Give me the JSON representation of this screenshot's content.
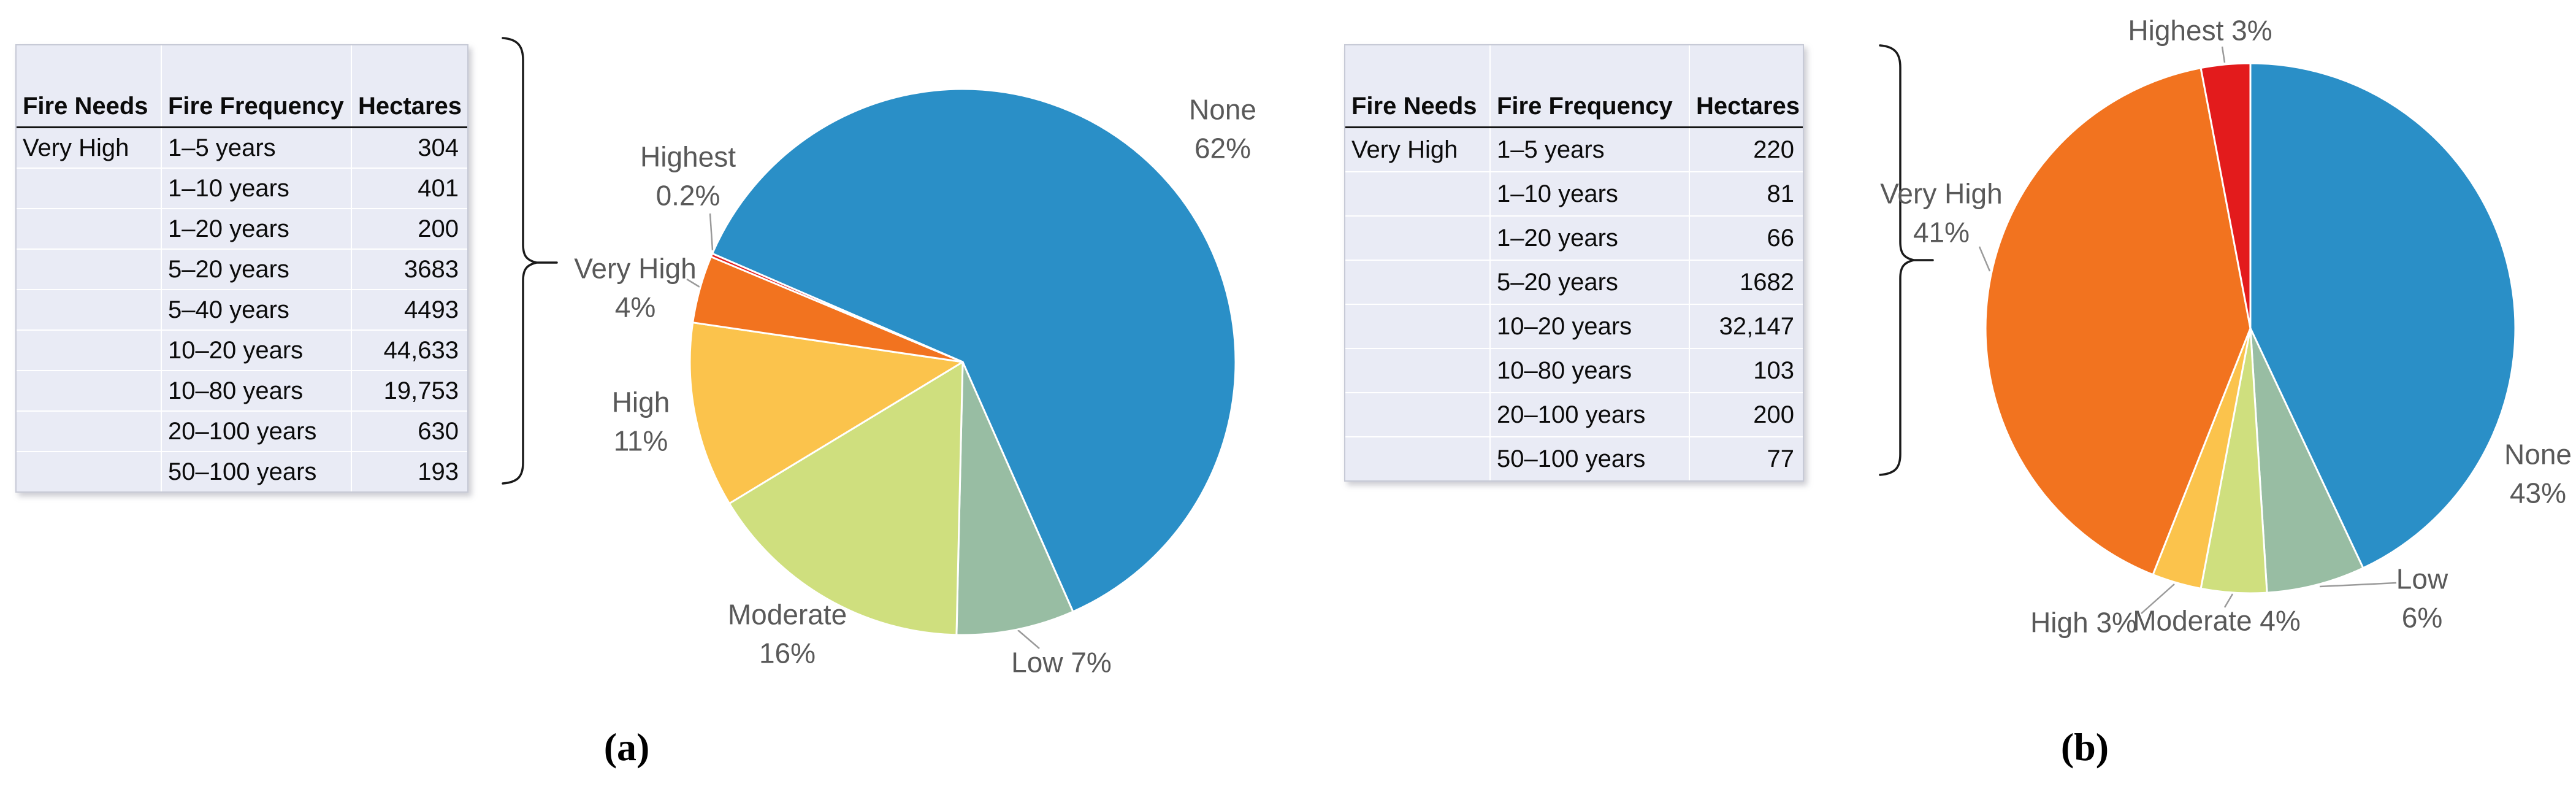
{
  "captions": [
    "(a)",
    "(b)"
  ],
  "tables": [
    {
      "headers": [
        "Fire Needs",
        "Fire Frequency",
        "Hectares"
      ],
      "rows": [
        [
          "Very High",
          "1–5 years",
          "304"
        ],
        [
          "",
          "1–10 years",
          "401"
        ],
        [
          "",
          "1–20 years",
          "200"
        ],
        [
          "",
          "5–20 years",
          "3683"
        ],
        [
          "",
          "5–40 years",
          "4493"
        ],
        [
          "",
          "10–20 years",
          "44,633"
        ],
        [
          "",
          "10–80 years",
          "19,753"
        ],
        [
          "",
          "20–100 years",
          "630"
        ],
        [
          "",
          "50–100 years",
          "193"
        ]
      ]
    },
    {
      "headers": [
        "Fire Needs",
        "Fire Frequency",
        "Hectares"
      ],
      "rows": [
        [
          "Very High",
          "1–5 years",
          "220"
        ],
        [
          "",
          "1–10 years",
          "81"
        ],
        [
          "",
          "1–20 years",
          "66"
        ],
        [
          "",
          "5–20 years",
          "1682"
        ],
        [
          "",
          "10–20 years",
          "32,147"
        ],
        [
          "",
          "10–80 years",
          "103"
        ],
        [
          "",
          "20–100 years",
          "200"
        ],
        [
          "",
          "50–100 years",
          "77"
        ]
      ]
    }
  ],
  "chart_data": [
    {
      "type": "pie",
      "panel": "a",
      "title": "",
      "legend": "none",
      "label_style": "outside-callouts",
      "rotation_deg": 293.4,
      "slices": [
        {
          "label": "None",
          "value": 62,
          "pct_text": "62%",
          "color": "#2A8FC7"
        },
        {
          "label": "Low",
          "value": 7,
          "pct_text": "7%",
          "color": "#98BDA3"
        },
        {
          "label": "Moderate",
          "value": 16,
          "pct_text": "16%",
          "color": "#CFDF7E"
        },
        {
          "label": "High",
          "value": 11,
          "pct_text": "11%",
          "color": "#FBC34C"
        },
        {
          "label": "Very High",
          "value": 4,
          "pct_text": "4%",
          "color": "#F2731F"
        },
        {
          "label": "Highest",
          "value": 0.2,
          "pct_text": "0.2%",
          "color": "#E31B1C"
        }
      ]
    },
    {
      "type": "pie",
      "panel": "b",
      "title": "",
      "legend": "none",
      "label_style": "outside-callouts",
      "rotation_deg": 0,
      "slices": [
        {
          "label": "None",
          "value": 43,
          "pct_text": "43%",
          "color": "#2A8FC7"
        },
        {
          "label": "Low",
          "value": 6,
          "pct_text": "6%",
          "color": "#98BDA3"
        },
        {
          "label": "Moderate",
          "value": 4,
          "pct_text": "4%",
          "color": "#CFDF7E"
        },
        {
          "label": "High",
          "value": 3,
          "pct_text": "3%",
          "color": "#FBC34C"
        },
        {
          "label": "Very High",
          "value": 41,
          "pct_text": "41%",
          "color": "#F2731F"
        },
        {
          "label": "Highest",
          "value": 3,
          "pct_text": "3%",
          "color": "#E31B1C"
        }
      ]
    }
  ],
  "colors": {
    "table_bg": "#E9EBF5",
    "label_text": "#595959",
    "leader_line": "#9A9A9A",
    "brace": "#1A1A1A"
  }
}
